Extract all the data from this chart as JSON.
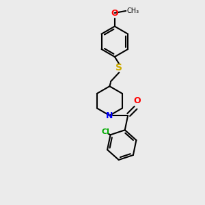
{
  "bg_color": "#ebebeb",
  "bond_color": "#000000",
  "bond_width": 1.5,
  "atom_colors": {
    "N": "#0000ff",
    "O": "#ff0000",
    "S": "#ccaa00",
    "Cl": "#00aa00",
    "C": "#000000"
  },
  "font_size": 8.0,
  "ring_r": 0.75,
  "pip_r": 0.72
}
